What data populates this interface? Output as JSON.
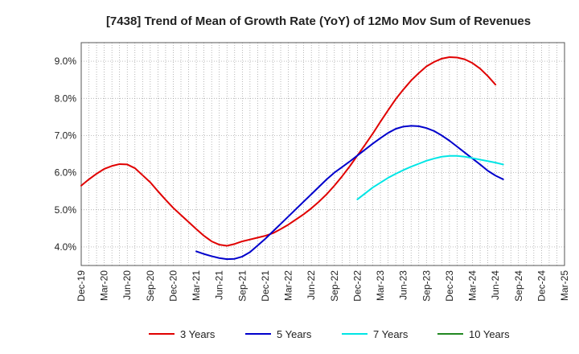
{
  "chart_data": {
    "type": "line",
    "title": "[7438]  Trend of Mean of Growth Rate (YoY) of 12Mo Mov Sum of Revenues",
    "xlabel": "",
    "ylabel": "",
    "ylim": [
      3.5,
      9.5
    ],
    "yticks": [
      4.0,
      5.0,
      6.0,
      7.0,
      8.0,
      9.0
    ],
    "ytick_labels": [
      "4.0%",
      "5.0%",
      "6.0%",
      "7.0%",
      "8.0%",
      "9.0%"
    ],
    "x_start": "Dec-19",
    "x_count": 64,
    "xtick_labels": [
      "Dec-19",
      "Mar-20",
      "Jun-20",
      "Sep-20",
      "Dec-20",
      "Mar-21",
      "Jun-21",
      "Sep-21",
      "Dec-21",
      "Mar-22",
      "Jun-22",
      "Sep-22",
      "Dec-22",
      "Mar-23",
      "Jun-23",
      "Sep-23",
      "Dec-23",
      "Mar-24",
      "Jun-24",
      "Sep-24",
      "Dec-24",
      "Mar-25"
    ],
    "grid": true,
    "legend_position": "bottom",
    "series": [
      {
        "name": "3 Years",
        "color": "#e00000",
        "start_index": 0,
        "values": [
          5.65,
          5.82,
          5.97,
          6.1,
          6.18,
          6.23,
          6.22,
          6.12,
          5.93,
          5.74,
          5.5,
          5.27,
          5.05,
          4.86,
          4.67,
          4.48,
          4.3,
          4.15,
          4.06,
          4.03,
          4.08,
          4.15,
          4.2,
          4.25,
          4.3,
          4.37,
          4.48,
          4.6,
          4.74,
          4.88,
          5.04,
          5.22,
          5.42,
          5.65,
          5.9,
          6.17,
          6.46,
          6.75,
          7.05,
          7.37,
          7.68,
          7.98,
          8.24,
          8.48,
          8.68,
          8.86,
          8.98,
          9.07,
          9.11,
          9.1,
          9.05,
          8.95,
          8.8,
          8.6,
          8.37
        ]
      },
      {
        "name": "5 Years",
        "color": "#0000cc",
        "start_index": 15,
        "values": [
          3.88,
          3.81,
          3.75,
          3.7,
          3.67,
          3.68,
          3.74,
          3.86,
          4.04,
          4.22,
          4.42,
          4.62,
          4.82,
          5.02,
          5.22,
          5.42,
          5.62,
          5.82,
          6.0,
          6.15,
          6.3,
          6.46,
          6.62,
          6.78,
          6.93,
          7.07,
          7.18,
          7.24,
          7.26,
          7.25,
          7.2,
          7.12,
          7.0,
          6.86,
          6.7,
          6.54,
          6.38,
          6.22,
          6.05,
          5.92,
          5.82
        ]
      },
      {
        "name": "7 Years",
        "color": "#00e5e5",
        "start_index": 36,
        "values": [
          5.28,
          5.44,
          5.6,
          5.73,
          5.86,
          5.97,
          6.07,
          6.16,
          6.24,
          6.32,
          6.38,
          6.43,
          6.45,
          6.45,
          6.43,
          6.39,
          6.35,
          6.31,
          6.27,
          6.22
        ]
      },
      {
        "name": "10 Years",
        "color": "#228822",
        "start_index": 0,
        "values": []
      }
    ]
  }
}
